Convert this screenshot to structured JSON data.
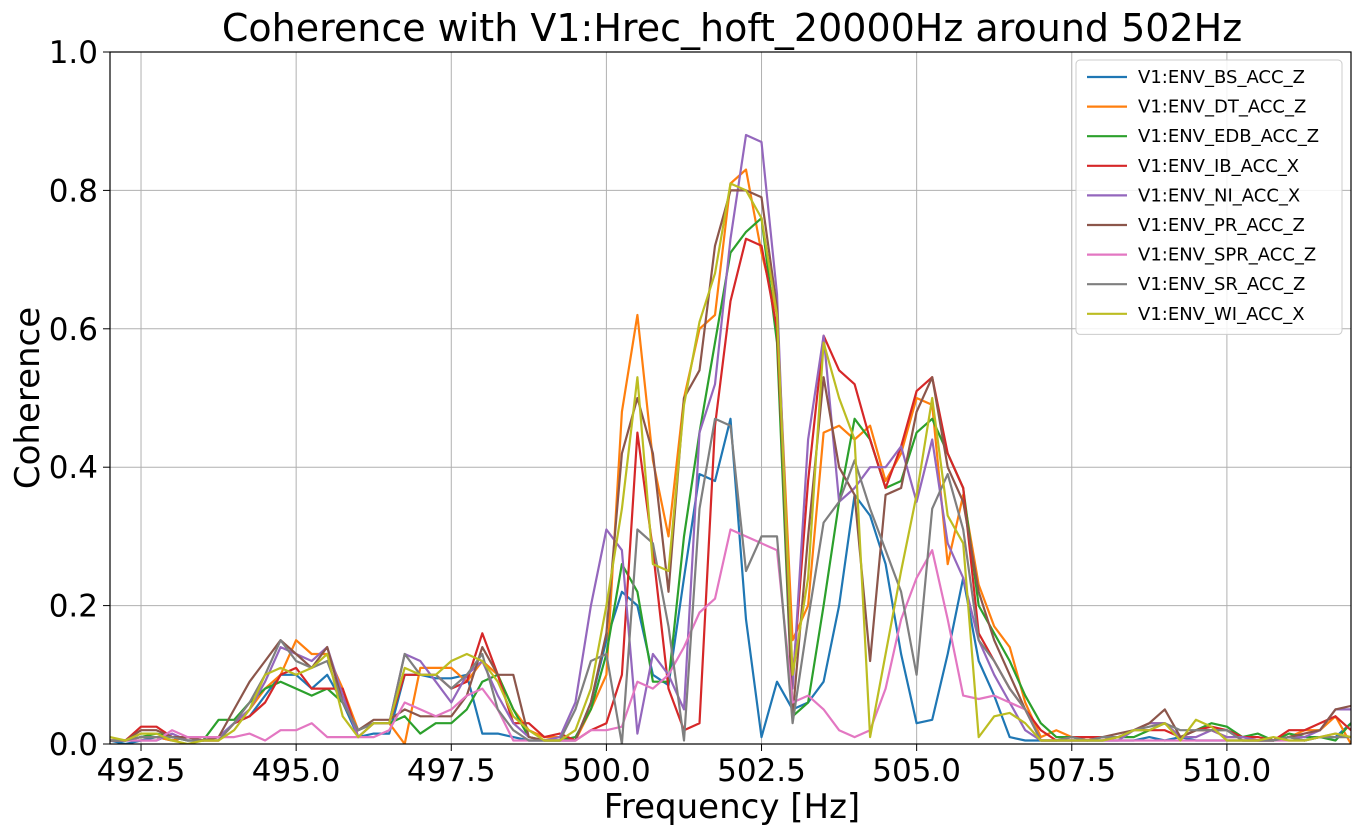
{
  "chart_data": {
    "type": "line",
    "title": "Coherence with V1:Hrec_hoft_20000Hz around 502Hz",
    "xlabel": "Frequency [Hz]",
    "ylabel": "Coherence",
    "xlim": [
      492.0,
      512.0
    ],
    "ylim": [
      0.0,
      1.0
    ],
    "xticks": [
      492.5,
      495.0,
      497.5,
      500.0,
      502.5,
      505.0,
      507.5,
      510.0
    ],
    "xtick_labels": [
      "492.5",
      "495.0",
      "497.5",
      "500.0",
      "502.5",
      "505.0",
      "507.5",
      "510.0"
    ],
    "yticks": [
      0.0,
      0.2,
      0.4,
      0.6,
      0.8,
      1.0
    ],
    "ytick_labels": [
      "0.0",
      "0.2",
      "0.4",
      "0.6",
      "0.8",
      "1.0"
    ],
    "grid": true,
    "legend_position": "top-right",
    "x": [
      492.0,
      492.25,
      492.5,
      492.75,
      493.0,
      493.25,
      493.5,
      493.75,
      494.0,
      494.25,
      494.5,
      494.75,
      495.0,
      495.25,
      495.5,
      495.75,
      496.0,
      496.25,
      496.5,
      496.75,
      497.0,
      497.25,
      497.5,
      497.75,
      498.0,
      498.25,
      498.5,
      498.75,
      499.0,
      499.25,
      499.5,
      499.75,
      500.0,
      500.25,
      500.5,
      500.75,
      501.0,
      501.25,
      501.5,
      501.75,
      502.0,
      502.25,
      502.5,
      502.75,
      503.0,
      503.25,
      503.5,
      503.75,
      504.0,
      504.25,
      504.5,
      504.75,
      505.0,
      505.25,
      505.5,
      505.75,
      506.0,
      506.25,
      506.5,
      506.75,
      507.0,
      507.25,
      507.5,
      507.75,
      508.0,
      508.25,
      508.5,
      508.75,
      509.0,
      509.25,
      509.5,
      509.75,
      510.0,
      510.25,
      510.5,
      510.75,
      511.0,
      511.25,
      511.5,
      511.75,
      512.0
    ],
    "series": [
      {
        "name": "V1:ENV_BS_ACC_Z",
        "color": "#1f77b4",
        "values": [
          0.005,
          0.0,
          0.005,
          0.01,
          0.005,
          0.01,
          0.005,
          0.01,
          0.03,
          0.04,
          0.07,
          0.1,
          0.1,
          0.08,
          0.1,
          0.06,
          0.01,
          0.015,
          0.015,
          0.1,
          0.1,
          0.095,
          0.095,
          0.1,
          0.015,
          0.015,
          0.01,
          0.005,
          0.005,
          0.005,
          0.005,
          0.06,
          0.15,
          0.22,
          0.2,
          0.1,
          0.085,
          0.24,
          0.39,
          0.38,
          0.47,
          0.18,
          0.01,
          0.09,
          0.05,
          0.06,
          0.09,
          0.2,
          0.36,
          0.33,
          0.26,
          0.13,
          0.03,
          0.035,
          0.13,
          0.24,
          0.12,
          0.07,
          0.01,
          0.005,
          0.005,
          0.005,
          0.005,
          0.005,
          0.005,
          0.005,
          0.005,
          0.01,
          0.005,
          0.01,
          0.005,
          0.005,
          0.005,
          0.005,
          0.005,
          0.005,
          0.01,
          0.005,
          0.01,
          0.01,
          0.03
        ]
      },
      {
        "name": "V1:ENV_DT_ACC_Z",
        "color": "#ff7f0e",
        "values": [
          0.005,
          0.005,
          0.01,
          0.01,
          0.005,
          0.01,
          0.005,
          0.005,
          0.03,
          0.05,
          0.08,
          0.1,
          0.15,
          0.13,
          0.13,
          0.08,
          0.02,
          0.03,
          0.03,
          0.0,
          0.11,
          0.11,
          0.11,
          0.09,
          0.12,
          0.1,
          0.05,
          0.02,
          0.01,
          0.01,
          0.005,
          0.05,
          0.1,
          0.48,
          0.62,
          0.41,
          0.3,
          0.5,
          0.6,
          0.62,
          0.81,
          0.83,
          0.71,
          0.62,
          0.15,
          0.2,
          0.45,
          0.46,
          0.44,
          0.46,
          0.38,
          0.42,
          0.5,
          0.49,
          0.26,
          0.36,
          0.23,
          0.17,
          0.14,
          0.06,
          0.01,
          0.02,
          0.01,
          0.01,
          0.01,
          0.01,
          0.02,
          0.03,
          0.03,
          0.01,
          0.02,
          0.02,
          0.01,
          0.01,
          0.005,
          0.005,
          0.01,
          0.02,
          0.02,
          0.04,
          0.0
        ]
      },
      {
        "name": "V1:ENV_EDB_ACC_Z",
        "color": "#2ca02c",
        "values": [
          0.005,
          0.005,
          0.01,
          0.015,
          0.01,
          0.005,
          0.005,
          0.035,
          0.035,
          0.06,
          0.08,
          0.09,
          0.08,
          0.07,
          0.08,
          0.06,
          0.02,
          0.03,
          0.03,
          0.04,
          0.015,
          0.03,
          0.03,
          0.05,
          0.09,
          0.1,
          0.05,
          0.01,
          0.005,
          0.005,
          0.01,
          0.05,
          0.13,
          0.26,
          0.22,
          0.09,
          0.09,
          0.3,
          0.45,
          0.58,
          0.71,
          0.74,
          0.76,
          0.58,
          0.04,
          0.06,
          0.2,
          0.35,
          0.47,
          0.44,
          0.37,
          0.38,
          0.45,
          0.47,
          0.42,
          0.37,
          0.2,
          0.16,
          0.12,
          0.07,
          0.03,
          0.01,
          0.01,
          0.005,
          0.005,
          0.01,
          0.01,
          0.02,
          0.03,
          0.01,
          0.02,
          0.03,
          0.025,
          0.01,
          0.015,
          0.005,
          0.015,
          0.01,
          0.01,
          0.005,
          0.03
        ]
      },
      {
        "name": "V1:ENV_IB_ACC_X",
        "color": "#d62728",
        "values": [
          0.005,
          0.005,
          0.025,
          0.025,
          0.01,
          0.01,
          0.005,
          0.005,
          0.03,
          0.04,
          0.06,
          0.1,
          0.11,
          0.08,
          0.08,
          0.08,
          0.01,
          0.03,
          0.03,
          0.1,
          0.1,
          0.1,
          0.08,
          0.09,
          0.16,
          0.1,
          0.03,
          0.03,
          0.01,
          0.015,
          0.005,
          0.02,
          0.03,
          0.1,
          0.45,
          0.28,
          0.08,
          0.02,
          0.03,
          0.46,
          0.64,
          0.73,
          0.72,
          0.6,
          0.09,
          0.38,
          0.59,
          0.54,
          0.52,
          0.44,
          0.37,
          0.43,
          0.51,
          0.53,
          0.42,
          0.37,
          0.16,
          0.12,
          0.08,
          0.05,
          0.02,
          0.005,
          0.01,
          0.01,
          0.01,
          0.01,
          0.02,
          0.02,
          0.02,
          0.01,
          0.02,
          0.025,
          0.02,
          0.01,
          0.01,
          0.005,
          0.02,
          0.02,
          0.03,
          0.04,
          0.02
        ]
      },
      {
        "name": "V1:ENV_NI_ACC_X",
        "color": "#9467bd",
        "values": [
          0.005,
          0.005,
          0.005,
          0.005,
          0.015,
          0.005,
          0.005,
          0.01,
          0.03,
          0.05,
          0.09,
          0.14,
          0.13,
          0.12,
          0.14,
          0.07,
          0.01,
          0.03,
          0.03,
          0.13,
          0.12,
          0.09,
          0.06,
          0.1,
          0.12,
          0.07,
          0.03,
          0.01,
          0.005,
          0.01,
          0.06,
          0.2,
          0.31,
          0.28,
          0.015,
          0.13,
          0.1,
          0.05,
          0.45,
          0.52,
          0.73,
          0.88,
          0.87,
          0.65,
          0.08,
          0.44,
          0.59,
          0.35,
          0.37,
          0.4,
          0.4,
          0.43,
          0.35,
          0.44,
          0.29,
          0.24,
          0.15,
          0.1,
          0.06,
          0.02,
          0.005,
          0.005,
          0.005,
          0.005,
          0.005,
          0.005,
          0.02,
          0.03,
          0.03,
          0.01,
          0.01,
          0.02,
          0.01,
          0.01,
          0.005,
          0.005,
          0.01,
          0.01,
          0.02,
          0.05,
          0.05
        ]
      },
      {
        "name": "V1:ENV_PR_ACC_Z",
        "color": "#8c564b",
        "values": [
          0.005,
          0.005,
          0.02,
          0.02,
          0.01,
          0.01,
          0.005,
          0.01,
          0.05,
          0.09,
          0.12,
          0.15,
          0.13,
          0.11,
          0.14,
          0.06,
          0.02,
          0.035,
          0.035,
          0.05,
          0.04,
          0.04,
          0.04,
          0.07,
          0.14,
          0.1,
          0.1,
          0.01,
          0.005,
          0.005,
          0.005,
          0.06,
          0.16,
          0.42,
          0.5,
          0.42,
          0.22,
          0.5,
          0.54,
          0.72,
          0.8,
          0.8,
          0.79,
          0.63,
          0.04,
          0.3,
          0.53,
          0.4,
          0.36,
          0.12,
          0.36,
          0.37,
          0.48,
          0.53,
          0.4,
          0.35,
          0.22,
          0.15,
          0.1,
          0.05,
          0.005,
          0.005,
          0.005,
          0.005,
          0.01,
          0.015,
          0.02,
          0.03,
          0.05,
          0.01,
          0.02,
          0.02,
          0.02,
          0.005,
          0.005,
          0.005,
          0.01,
          0.015,
          0.02,
          0.05,
          0.055
        ]
      },
      {
        "name": "V1:ENV_SPR_ACC_Z",
        "color": "#e377c2",
        "values": [
          0.005,
          0.005,
          0.005,
          0.005,
          0.02,
          0.01,
          0.01,
          0.01,
          0.01,
          0.015,
          0.005,
          0.02,
          0.02,
          0.03,
          0.01,
          0.01,
          0.01,
          0.01,
          0.02,
          0.06,
          0.05,
          0.04,
          0.05,
          0.07,
          0.08,
          0.05,
          0.005,
          0.005,
          0.005,
          0.005,
          0.005,
          0.02,
          0.02,
          0.025,
          0.09,
          0.08,
          0.1,
          0.14,
          0.19,
          0.21,
          0.31,
          0.3,
          0.29,
          0.28,
          0.06,
          0.07,
          0.05,
          0.02,
          0.01,
          0.02,
          0.08,
          0.18,
          0.24,
          0.28,
          0.18,
          0.07,
          0.065,
          0.07,
          0.06,
          0.05,
          0.005,
          0.005,
          0.005,
          0.005,
          0.005,
          0.005,
          0.005,
          0.005,
          0.005,
          0.005,
          0.005,
          0.005,
          0.005,
          0.005,
          0.005,
          0.005,
          0.005,
          0.005,
          0.01,
          0.015,
          0.01
        ]
      },
      {
        "name": "V1:ENV_SR_ACC_Z",
        "color": "#7f7f7f",
        "values": [
          0.005,
          0.005,
          0.01,
          0.01,
          0.01,
          0.005,
          0.005,
          0.005,
          0.03,
          0.06,
          0.1,
          0.15,
          0.12,
          0.11,
          0.12,
          0.06,
          0.02,
          0.03,
          0.03,
          0.13,
          0.1,
          0.1,
          0.08,
          0.1,
          0.13,
          0.05,
          0.02,
          0.005,
          0.005,
          0.005,
          0.05,
          0.12,
          0.13,
          0.0,
          0.31,
          0.29,
          0.17,
          0.005,
          0.34,
          0.47,
          0.46,
          0.25,
          0.3,
          0.3,
          0.03,
          0.18,
          0.32,
          0.35,
          0.41,
          0.34,
          0.28,
          0.22,
          0.1,
          0.34,
          0.39,
          0.31,
          0.15,
          0.12,
          0.08,
          0.05,
          0.005,
          0.005,
          0.01,
          0.005,
          0.01,
          0.01,
          0.02,
          0.025,
          0.03,
          0.02,
          0.02,
          0.02,
          0.02,
          0.005,
          0.005,
          0.005,
          0.01,
          0.005,
          0.01,
          0.01,
          0.01
        ]
      },
      {
        "name": "V1:ENV_WI_ACC_X",
        "color": "#bcbd22",
        "values": [
          0.01,
          0.005,
          0.015,
          0.015,
          0.005,
          0.0,
          0.005,
          0.005,
          0.02,
          0.05,
          0.1,
          0.11,
          0.1,
          0.11,
          0.13,
          0.04,
          0.01,
          0.03,
          0.03,
          0.11,
          0.1,
          0.1,
          0.12,
          0.13,
          0.12,
          0.09,
          0.04,
          0.02,
          0.005,
          0.005,
          0.02,
          0.08,
          0.2,
          0.34,
          0.53,
          0.26,
          0.25,
          0.49,
          0.61,
          0.68,
          0.81,
          0.8,
          0.76,
          0.62,
          0.1,
          0.24,
          0.58,
          0.5,
          0.44,
          0.01,
          0.13,
          0.25,
          0.36,
          0.5,
          0.33,
          0.29,
          0.01,
          0.04,
          0.045,
          0.03,
          0.005,
          0.005,
          0.005,
          0.005,
          0.005,
          0.01,
          0.02,
          0.02,
          0.03,
          0.005,
          0.035,
          0.025,
          0.005,
          0.005,
          0.005,
          0.01,
          0.005,
          0.005,
          0.01,
          0.015,
          0.01
        ]
      }
    ]
  }
}
